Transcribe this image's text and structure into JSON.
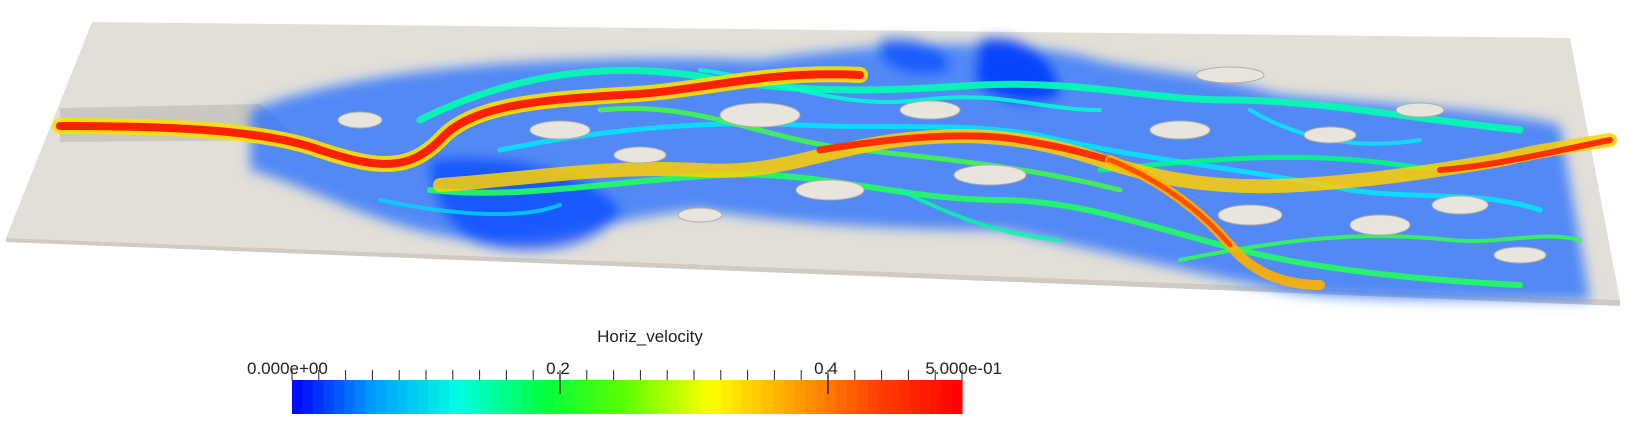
{
  "scalar_bar": {
    "title": "Horiz_velocity",
    "labels": [
      "0.000e+00",
      "0.2",
      "0.4",
      "5.000e-01"
    ],
    "range": [
      0,
      0.5
    ],
    "colormap": [
      "#0000ff",
      "#00a0ff",
      "#00ffe0",
      "#00ff40",
      "#60ff00",
      "#ffff00",
      "#ffa000",
      "#ff4000",
      "#ff0000"
    ]
  },
  "colors": {
    "terrain": "#e2dfd8",
    "terrain_shadow": "#b9b5ad",
    "background": "#ffffff"
  }
}
